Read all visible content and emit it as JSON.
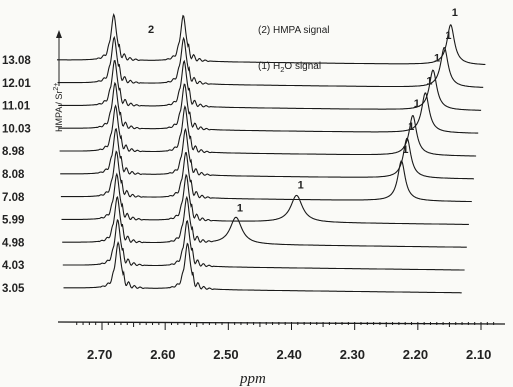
{
  "chart_data": {
    "type": "line",
    "xlabel": "ppm",
    "ylabel_text": "HMPA / Sr",
    "ylabel_sup": "2+",
    "x_ticks": [
      "2.70",
      "2.60",
      "2.50",
      "2.40",
      "2.30",
      "2.20",
      "2.10"
    ],
    "x_tick_values": [
      2.7,
      2.6,
      2.5,
      2.4,
      2.3,
      2.2,
      2.1
    ],
    "xlim": [
      2.76,
      2.08
    ],
    "legend": {
      "hmpa": "(2) HMPA signal",
      "water_prefix": "(1) H",
      "water_sub": "2",
      "water_suffix": "O signal"
    },
    "hmpa_peak_label": "2",
    "hmpa_peaks_ppm": [
      2.675,
      2.565
    ],
    "series": [
      {
        "ratio": "13.08",
        "water_ppm": 2.148,
        "water_label": "1"
      },
      {
        "ratio": "12.01",
        "water_ppm": 2.158,
        "water_label": "1"
      },
      {
        "ratio": "11.01",
        "water_ppm": 2.176,
        "water_label": "1"
      },
      {
        "ratio": "10.03",
        "water_ppm": 2.188,
        "water_label": "1"
      },
      {
        "ratio": "8.98",
        "water_ppm": 2.208,
        "water_label": "1"
      },
      {
        "ratio": "8.08",
        "water_ppm": 2.217,
        "water_label": "1"
      },
      {
        "ratio": "7.08",
        "water_ppm": 2.226,
        "water_label": "1"
      },
      {
        "ratio": "5.99",
        "water_ppm": 2.392,
        "water_label": "1"
      },
      {
        "ratio": "4.98",
        "water_ppm": 2.488,
        "water_label": "1"
      },
      {
        "ratio": "4.03",
        "water_ppm": null,
        "water_label": ""
      },
      {
        "ratio": "3.05",
        "water_ppm": null,
        "water_label": ""
      }
    ]
  }
}
